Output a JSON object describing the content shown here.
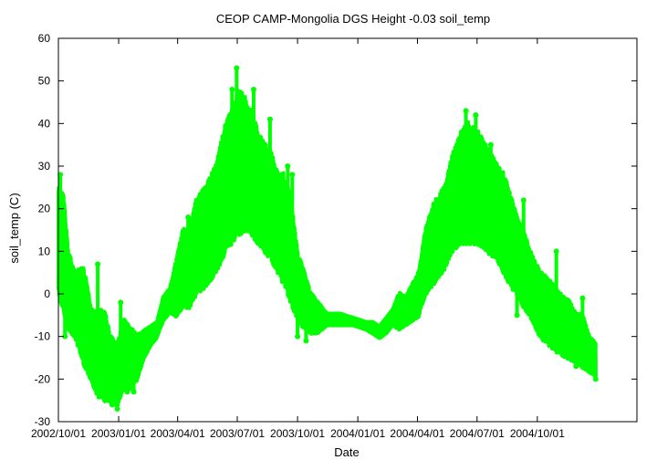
{
  "chart_data": {
    "type": "scatter",
    "title": "CEOP CAMP-Mongolia DGS Height -0.03 soil_temp",
    "xlabel": "Date",
    "ylabel": "soil_temp (C)",
    "ylim": [
      -30,
      60
    ],
    "yticks": [
      -30,
      -20,
      -10,
      0,
      10,
      20,
      30,
      40,
      50,
      60
    ],
    "xlim_days": [
      0,
      883
    ],
    "xticks": [
      {
        "day": 0,
        "label": "2002/10/01"
      },
      {
        "day": 92,
        "label": "2003/01/01"
      },
      {
        "day": 182,
        "label": "2003/04/01"
      },
      {
        "day": 273,
        "label": "2003/07/01"
      },
      {
        "day": 365,
        "label": "2003/10/01"
      },
      {
        "day": 457,
        "label": "2004/01/01"
      },
      {
        "day": 548,
        "label": "2004/04/01"
      },
      {
        "day": 639,
        "label": "2004/07/01"
      },
      {
        "day": 731,
        "label": "2004/10/01"
      }
    ],
    "grid": false,
    "marker_color": "#00ff00",
    "series": [
      {
        "name": "soil_temp",
        "envelope": [
          {
            "day": 0,
            "min": 0,
            "max": 25
          },
          {
            "day": 8,
            "min": -4,
            "max": 23
          },
          {
            "day": 15,
            "min": -8,
            "max": 10
          },
          {
            "day": 25,
            "min": -10,
            "max": 5
          },
          {
            "day": 40,
            "min": -17,
            "max": 6
          },
          {
            "day": 50,
            "min": -20,
            "max": -4
          },
          {
            "day": 60,
            "min": -24,
            "max": -4
          },
          {
            "day": 70,
            "min": -25,
            "max": -4
          },
          {
            "day": 80,
            "min": -25,
            "max": -10
          },
          {
            "day": 90,
            "min": -26,
            "max": -12
          },
          {
            "day": 100,
            "min": -22,
            "max": -6
          },
          {
            "day": 110,
            "min": -22,
            "max": -8
          },
          {
            "day": 120,
            "min": -20,
            "max": -10
          },
          {
            "day": 130,
            "min": -15,
            "max": -9
          },
          {
            "day": 140,
            "min": -12,
            "max": -8
          },
          {
            "day": 150,
            "min": -10,
            "max": -7
          },
          {
            "day": 160,
            "min": -6,
            "max": -1
          },
          {
            "day": 170,
            "min": -4,
            "max": 1
          },
          {
            "day": 180,
            "min": -5,
            "max": 8
          },
          {
            "day": 190,
            "min": -3,
            "max": 15
          },
          {
            "day": 200,
            "min": -3,
            "max": 15
          },
          {
            "day": 210,
            "min": 0,
            "max": 22
          },
          {
            "day": 225,
            "min": 2,
            "max": 25
          },
          {
            "day": 240,
            "min": 5,
            "max": 30
          },
          {
            "day": 255,
            "min": 10,
            "max": 40
          },
          {
            "day": 265,
            "min": 12,
            "max": 43
          },
          {
            "day": 275,
            "min": 14,
            "max": 48
          },
          {
            "day": 285,
            "min": 15,
            "max": 46
          },
          {
            "day": 295,
            "min": 14,
            "max": 43
          },
          {
            "day": 305,
            "min": 12,
            "max": 38
          },
          {
            "day": 315,
            "min": 10,
            "max": 35
          },
          {
            "day": 325,
            "min": 8,
            "max": 33
          },
          {
            "day": 335,
            "min": 5,
            "max": 28
          },
          {
            "day": 345,
            "min": 2,
            "max": 28
          },
          {
            "day": 355,
            "min": -2,
            "max": 22
          },
          {
            "day": 365,
            "min": -6,
            "max": 10
          },
          {
            "day": 375,
            "min": -8,
            "max": 5
          },
          {
            "day": 385,
            "min": -9,
            "max": 0
          },
          {
            "day": 395,
            "min": -9,
            "max": -2
          },
          {
            "day": 410,
            "min": -7,
            "max": -5
          },
          {
            "day": 430,
            "min": -7,
            "max": -5
          },
          {
            "day": 450,
            "min": -7,
            "max": -6
          },
          {
            "day": 470,
            "min": -8,
            "max": -7
          },
          {
            "day": 480,
            "min": -9,
            "max": -7
          },
          {
            "day": 490,
            "min": -10,
            "max": -8
          },
          {
            "day": 500,
            "min": -9,
            "max": -6
          },
          {
            "day": 510,
            "min": -7,
            "max": -4
          },
          {
            "day": 520,
            "min": -8,
            "max": 0
          },
          {
            "day": 530,
            "min": -7,
            "max": -1
          },
          {
            "day": 540,
            "min": -6,
            "max": 2
          },
          {
            "day": 550,
            "min": -5,
            "max": 5
          },
          {
            "day": 560,
            "min": 0,
            "max": 15
          },
          {
            "day": 575,
            "min": 3,
            "max": 22
          },
          {
            "day": 590,
            "min": 6,
            "max": 25
          },
          {
            "day": 600,
            "min": 10,
            "max": 32
          },
          {
            "day": 615,
            "min": 12,
            "max": 38
          },
          {
            "day": 625,
            "min": 12,
            "max": 40
          },
          {
            "day": 640,
            "min": 12,
            "max": 38
          },
          {
            "day": 655,
            "min": 10,
            "max": 34
          },
          {
            "day": 670,
            "min": 8,
            "max": 30
          },
          {
            "day": 680,
            "min": 5,
            "max": 28
          },
          {
            "day": 690,
            "min": 2,
            "max": 23
          },
          {
            "day": 700,
            "min": 0,
            "max": 18
          },
          {
            "day": 710,
            "min": -3,
            "max": 15
          },
          {
            "day": 720,
            "min": -5,
            "max": 10
          },
          {
            "day": 735,
            "min": -10,
            "max": 5
          },
          {
            "day": 750,
            "min": -12,
            "max": 3
          },
          {
            "day": 765,
            "min": -14,
            "max": 0
          },
          {
            "day": 780,
            "min": -15,
            "max": -2
          },
          {
            "day": 790,
            "min": -16,
            "max": -5
          },
          {
            "day": 800,
            "min": -17,
            "max": -5
          },
          {
            "day": 810,
            "min": -18,
            "max": -10
          },
          {
            "day": 820,
            "min": -19,
            "max": -12
          }
        ],
        "peaks": [
          {
            "day": 3,
            "value": 28
          },
          {
            "day": 60,
            "value": 7
          },
          {
            "day": 95,
            "value": -2
          },
          {
            "day": 166,
            "value": 0
          },
          {
            "day": 198,
            "value": 18
          },
          {
            "day": 265,
            "value": 48
          },
          {
            "day": 272,
            "value": 53
          },
          {
            "day": 298,
            "value": 48
          },
          {
            "day": 323,
            "value": 41
          },
          {
            "day": 350,
            "value": 30
          },
          {
            "day": 357,
            "value": 28
          },
          {
            "day": 555,
            "value": 0
          },
          {
            "day": 607,
            "value": 33
          },
          {
            "day": 622,
            "value": 43
          },
          {
            "day": 637,
            "value": 42
          },
          {
            "day": 660,
            "value": 35
          },
          {
            "day": 710,
            "value": 22
          },
          {
            "day": 760,
            "value": 10
          },
          {
            "day": 800,
            "value": -1
          },
          {
            "day": 818,
            "value": -13
          }
        ],
        "troughs": [
          {
            "day": 10,
            "value": -10
          },
          {
            "day": 82,
            "value": -26
          },
          {
            "day": 90,
            "value": -27
          },
          {
            "day": 105,
            "value": -23
          },
          {
            "day": 115,
            "value": -23
          },
          {
            "day": 305,
            "value": 12
          },
          {
            "day": 365,
            "value": -10
          },
          {
            "day": 378,
            "value": -11
          },
          {
            "day": 490,
            "value": -10
          },
          {
            "day": 700,
            "value": -5
          },
          {
            "day": 790,
            "value": -17
          },
          {
            "day": 820,
            "value": -20
          }
        ]
      }
    ]
  }
}
